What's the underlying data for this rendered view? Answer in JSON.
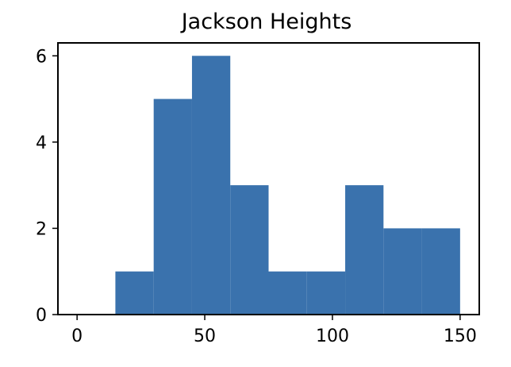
{
  "chart_data": {
    "type": "bar",
    "subtype": "histogram",
    "title": "Jackson Heights",
    "xlabel": "",
    "ylabel": "",
    "bins": [
      {
        "start": 15,
        "end": 30,
        "count": 1
      },
      {
        "start": 30,
        "end": 45,
        "count": 5
      },
      {
        "start": 45,
        "end": 60,
        "count": 6
      },
      {
        "start": 60,
        "end": 75,
        "count": 3
      },
      {
        "start": 75,
        "end": 90,
        "count": 1
      },
      {
        "start": 90,
        "end": 105,
        "count": 1
      },
      {
        "start": 105,
        "end": 120,
        "count": 3
      },
      {
        "start": 120,
        "end": 135,
        "count": 2
      },
      {
        "start": 135,
        "end": 150,
        "count": 2
      }
    ],
    "xlim": [
      -7.5,
      157.5
    ],
    "ylim": [
      0,
      6.3
    ],
    "xticks": [
      "0",
      "50",
      "100",
      "150"
    ],
    "yticks": [
      "0",
      "2",
      "4",
      "6"
    ],
    "grid": false,
    "legend": "none",
    "bar_color": "#3a72ad"
  }
}
